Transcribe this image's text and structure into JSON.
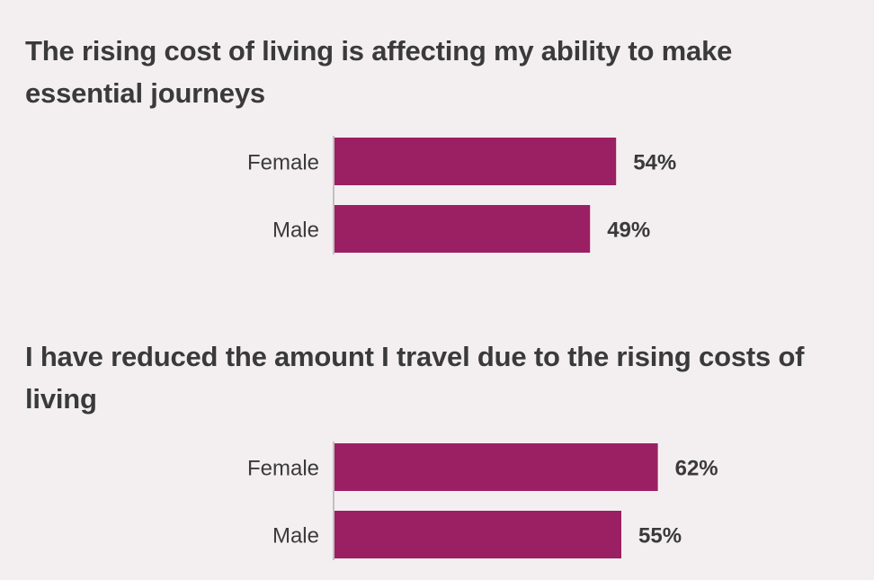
{
  "colors": {
    "bar": "#9b1f63",
    "axis": "#b5b1b2",
    "background": "#f3eff0",
    "text": "#3a3a3a"
  },
  "chart_data": [
    {
      "type": "bar",
      "orientation": "horizontal",
      "title": "The rising cost of living is affecting my ability to make essential journeys",
      "categories": [
        "Female",
        "Male"
      ],
      "values": [
        54,
        49
      ],
      "value_labels": [
        "54%",
        "49%"
      ],
      "unit": "%",
      "xlim": [
        0,
        100
      ],
      "grid": false
    },
    {
      "type": "bar",
      "orientation": "horizontal",
      "title": "I have reduced the amount I travel due to the rising costs of living",
      "categories": [
        "Female",
        "Male"
      ],
      "values": [
        62,
        55
      ],
      "value_labels": [
        "62%",
        "55%"
      ],
      "unit": "%",
      "xlim": [
        0,
        100
      ],
      "grid": false
    }
  ]
}
